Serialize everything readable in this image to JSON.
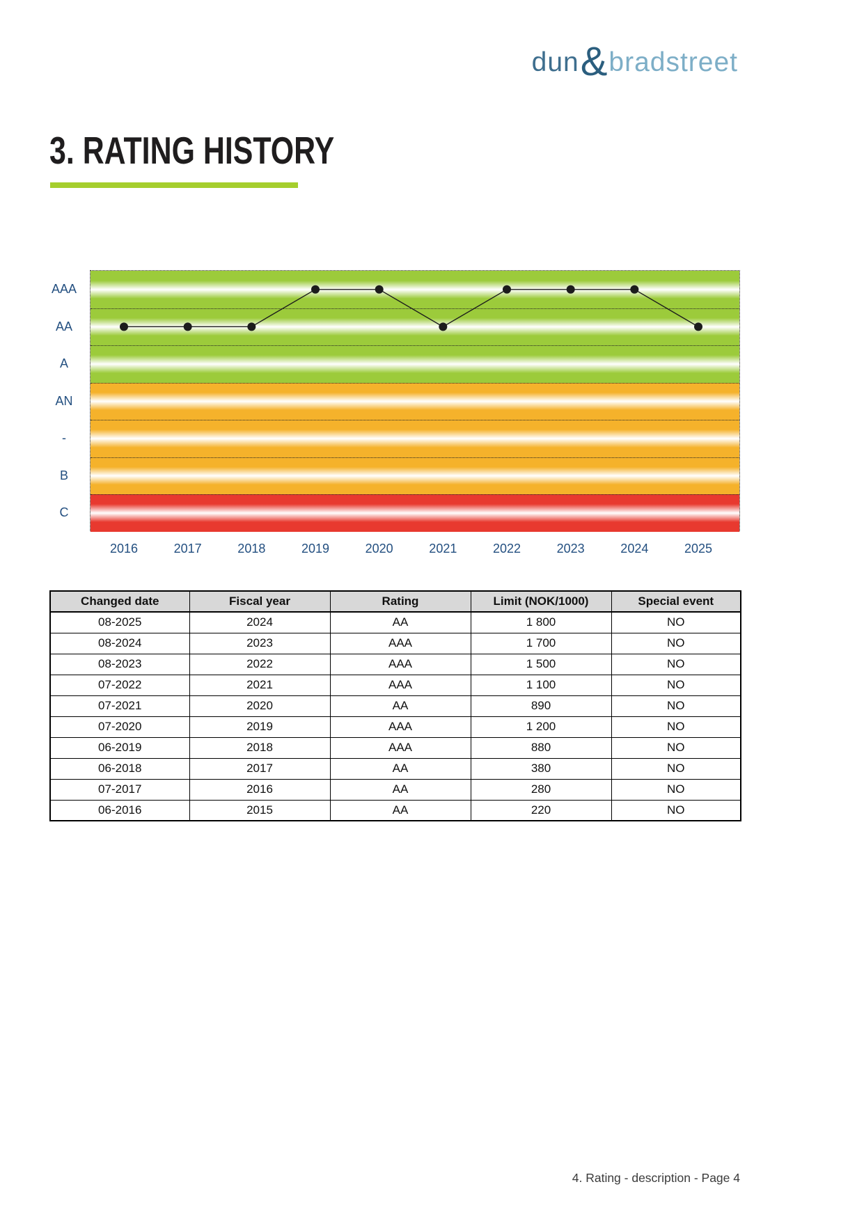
{
  "logo": {
    "part1": "dun",
    "ampersand": "&",
    "part2": "bradstreet"
  },
  "title": "3. RATING HISTORY",
  "chart_data": {
    "type": "line",
    "title": "",
    "x_categories": [
      "2016",
      "2017",
      "2018",
      "2019",
      "2020",
      "2021",
      "2022",
      "2023",
      "2024",
      "2025"
    ],
    "y_bands": [
      {
        "label": "AAA",
        "color": "#9CCB3B"
      },
      {
        "label": "AA",
        "color": "#9CCB3B"
      },
      {
        "label": "A",
        "color": "#9CCB3B"
      },
      {
        "label": "AN",
        "color": "#F5B22B"
      },
      {
        "label": "-",
        "color": "#F5B22B"
      },
      {
        "label": "B",
        "color": "#F5B22B"
      },
      {
        "label": "C",
        "color": "#E8392F"
      }
    ],
    "series": [
      {
        "name": "Rating",
        "values": [
          "AA",
          "AA",
          "AA",
          "AAA",
          "AAA",
          "AA",
          "AAA",
          "AAA",
          "AAA",
          "AA"
        ]
      }
    ],
    "legend": false,
    "grid": "dotted-band-boundaries"
  },
  "table": {
    "headers": [
      "Changed date",
      "Fiscal year",
      "Rating",
      "Limit (NOK/1000)",
      "Special event"
    ],
    "rows": [
      [
        "08-2025",
        "2024",
        "AA",
        "1 800",
        "NO"
      ],
      [
        "08-2024",
        "2023",
        "AAA",
        "1 700",
        "NO"
      ],
      [
        "08-2023",
        "2022",
        "AAA",
        "1 500",
        "NO"
      ],
      [
        "07-2022",
        "2021",
        "AAA",
        "1 100",
        "NO"
      ],
      [
        "07-2021",
        "2020",
        "AA",
        "890",
        "NO"
      ],
      [
        "07-2020",
        "2019",
        "AAA",
        "1 200",
        "NO"
      ],
      [
        "06-2019",
        "2018",
        "AAA",
        "880",
        "NO"
      ],
      [
        "06-2018",
        "2017",
        "AA",
        "380",
        "NO"
      ],
      [
        "07-2017",
        "2016",
        "AA",
        "280",
        "NO"
      ],
      [
        "06-2016",
        "2015",
        "AA",
        "220",
        "NO"
      ]
    ]
  },
  "footer": "4. Rating - description - Page 4",
  "colors": {
    "axis_label": "#234F80",
    "title_underline": "#A5CE2D",
    "logo_dun": "#3E6E8E",
    "logo_ampersand": "#2B5E7E",
    "logo_bradstreet": "#7DAEC7",
    "table_header_bg": "#D8D8D8",
    "line": "#1C1C1C"
  }
}
